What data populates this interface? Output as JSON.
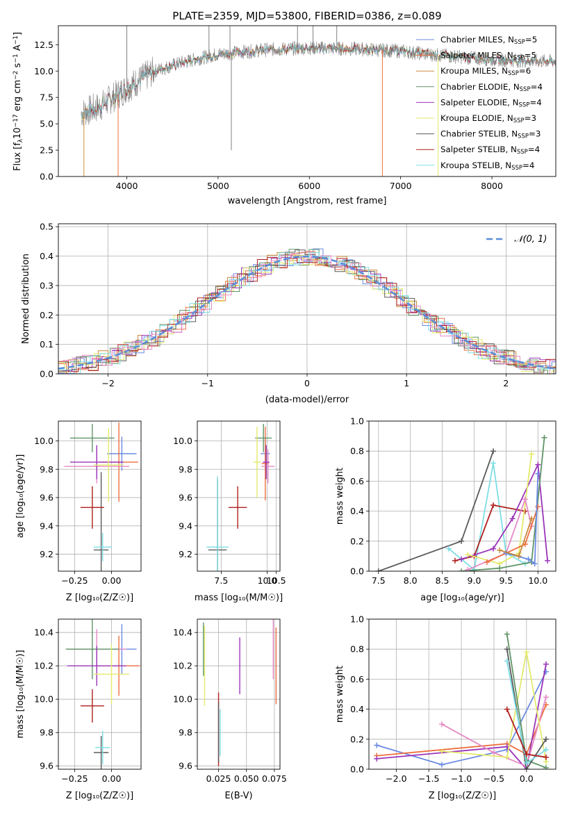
{
  "chart_data": [
    {
      "type": "line",
      "title": "PLATE=2359, MJD=53800, FIBERID=0386, z=0.089",
      "xlabel": "wavelength [Angstrom, rest frame]",
      "ylabel": "Flux [f_λ 10^-17 erg cm^-2 s^-1 A^-1]",
      "xlim": [
        3250,
        8700
      ],
      "ylim": [
        0,
        14.3
      ],
      "xticks": [
        4000,
        5000,
        6000,
        7000,
        8000
      ],
      "yticks": [
        "0.0",
        "2.5",
        "5.0",
        "7.5",
        "10.0",
        "12.5"
      ],
      "legend_position": "right",
      "legend": [
        {
          "name": "Chabrier MILES",
          "nssp": "5",
          "color": "#6b8ae4"
        },
        {
          "name": "Salpeter MILES",
          "nssp": "5",
          "color": "#ec6f3f"
        },
        {
          "name": "Kroupa MILES",
          "nssp": "6",
          "color": "#c8893a"
        },
        {
          "name": "Chabrier ELODIE",
          "nssp": "4",
          "color": "#5e9466"
        },
        {
          "name": "Salpeter ELODIE",
          "nssp": "4",
          "color": "#9a34b8"
        },
        {
          "name": "Kroupa ELODIE",
          "nssp": "3",
          "color": "#e3ea6b"
        },
        {
          "name": "Chabrier STELIB",
          "nssp": "3",
          "color": "#5a5a5a"
        },
        {
          "name": "Salpeter STELIB",
          "nssp": "4",
          "color": "#b01e1e"
        },
        {
          "name": "Kroupa STELIB",
          "nssp": "4",
          "color": "#7ddde4"
        }
      ],
      "spectrum_trend": {
        "x": [
          3500,
          3700,
          4000,
          4300,
          4600,
          5000,
          5500,
          6000,
          6500,
          7000,
          7300,
          7700,
          8000,
          8300,
          8700
        ],
        "y": [
          6.0,
          6.6,
          8.4,
          10.0,
          10.8,
          11.6,
          12.0,
          12.2,
          12.1,
          11.9,
          11.6,
          11.3,
          11.1,
          11.0,
          10.9
        ]
      },
      "spectrum_spikes": [
        {
          "x": 4000,
          "y": 14.3
        },
        {
          "x": 4900,
          "y": 14.3
        },
        {
          "x": 5130,
          "y": 14.3
        },
        {
          "x": 5145,
          "y": 2.5
        },
        {
          "x": 6040,
          "y": 14.3
        },
        {
          "x": 5870,
          "y": 14.3
        },
        {
          "x": 6300,
          "y": 14.3
        },
        {
          "x": 3905,
          "y": 0.0
        },
        {
          "x": 6800,
          "y": 0.0
        },
        {
          "x": 7410,
          "y": 0.0
        },
        {
          "x": 3530,
          "y": 0.0
        }
      ]
    },
    {
      "type": "bar",
      "xlabel": "(data-model)/error",
      "ylabel": "Normed distribution",
      "xlim": [
        -2.5,
        2.5
      ],
      "ylim": [
        0,
        0.51
      ],
      "xticks": [
        "−2",
        "−1",
        "0",
        "1",
        "2"
      ],
      "yticks": [
        "0.0",
        "0.1",
        "0.2",
        "0.3",
        "0.4",
        "0.5"
      ],
      "legend": [
        {
          "name": "𝒩(0, 1)",
          "color": "#5b8ed8",
          "style": "dashed"
        }
      ],
      "bin_width": 0.1
    },
    {
      "type": "scatter",
      "xlabel": "Z [log₁₀(Z/Z☉)]",
      "ylabel": "age  [log₁₀(age/yr)]",
      "xlim": [
        -0.36,
        0.2
      ],
      "ylim": [
        9.08,
        10.14
      ],
      "xticks": [
        "−0.25",
        "0.00"
      ],
      "yticks": [
        "9.2",
        "9.4",
        "9.6",
        "9.8",
        "10.0"
      ],
      "points": [
        {
          "x": 0.07,
          "y": 9.91,
          "xerr": 0.1,
          "yerr": 0.12,
          "color": "#6b8ae4"
        },
        {
          "x": 0.05,
          "y": 9.85,
          "xerr": 0.13,
          "yerr": 0.28,
          "color": "#ec6f3f"
        },
        {
          "x": -0.1,
          "y": 9.82,
          "xerr": 0.22,
          "yerr": 0.12,
          "color": "#e58ac5"
        },
        {
          "x": -0.13,
          "y": 10.02,
          "xerr": 0.15,
          "yerr": 0.1,
          "color": "#5e9466"
        },
        {
          "x": -0.1,
          "y": 9.85,
          "xerr": 0.18,
          "yerr": 0.12,
          "color": "#9a34b8"
        },
        {
          "x": -0.02,
          "y": 9.83,
          "xerr": 0.1,
          "yerr": 0.26,
          "color": "#e3ea6b"
        },
        {
          "x": -0.07,
          "y": 9.23,
          "xerr": 0.05,
          "yerr": 0.55,
          "color": "#5a5a5a"
        },
        {
          "x": -0.13,
          "y": 9.53,
          "xerr": 0.08,
          "yerr": 0.15,
          "color": "#b01e1e"
        },
        {
          "x": -0.06,
          "y": 9.25,
          "xerr": 0.06,
          "yerr": 0.1,
          "color": "#7ddde4"
        }
      ]
    },
    {
      "type": "scatter",
      "xlabel": "mass [log₁₀(M/M☉)]",
      "ylabel": "",
      "xlim": [
        6.2,
        10.7
      ],
      "ylim": [
        9.08,
        10.14
      ],
      "xticks": [
        "7.5",
        "10.0",
        "10.5"
      ],
      "yticks": [
        "9.2",
        "9.4",
        "9.6",
        "9.8",
        "10.0"
      ],
      "points": [
        {
          "x": 9.9,
          "y": 9.91,
          "xerr": 0.25,
          "yerr": 0.12,
          "color": "#6b8ae4"
        },
        {
          "x": 9.9,
          "y": 9.84,
          "xerr": 0.2,
          "yerr": 0.26,
          "color": "#ec6f3f"
        },
        {
          "x": 10.05,
          "y": 9.82,
          "xerr": 0.35,
          "yerr": 0.12,
          "color": "#e58ac5"
        },
        {
          "x": 9.8,
          "y": 10.02,
          "xerr": 0.45,
          "yerr": 0.1,
          "color": "#5e9466"
        },
        {
          "x": 9.95,
          "y": 9.85,
          "xerr": 0.18,
          "yerr": 0.12,
          "color": "#9a34b8"
        },
        {
          "x": 9.45,
          "y": 9.85,
          "xerr": 0.2,
          "yerr": 0.25,
          "color": "#e3ea6b"
        },
        {
          "x": 7.3,
          "y": 9.23,
          "xerr": 0.5,
          "yerr": 0.5,
          "color": "#5a5a5a"
        },
        {
          "x": 8.4,
          "y": 9.53,
          "xerr": 0.5,
          "yerr": 0.15,
          "color": "#b01e1e"
        },
        {
          "x": 7.3,
          "y": 9.25,
          "xerr": 0.6,
          "yerr": 0.5,
          "color": "#7ddde4"
        }
      ]
    },
    {
      "type": "line",
      "xlabel": "age  [log₁₀(age/yr)]",
      "ylabel": "mass weight",
      "xlim": [
        7.35,
        10.28
      ],
      "ylim": [
        0,
        1
      ],
      "xticks": [
        "7.5",
        "8.0",
        "8.5",
        "9.0",
        "9.5",
        "10.0"
      ],
      "yticks": [
        "0.0",
        "0.2",
        "0.4",
        "0.6",
        "0.8",
        "1.0"
      ],
      "series": [
        {
          "color": "#5a5a5a",
          "x": [
            7.5,
            8.8,
            9.3
          ],
          "y": [
            0.0,
            0.2,
            0.8
          ]
        },
        {
          "color": "#7ddde4",
          "x": [
            8.6,
            9.0,
            9.3,
            9.5,
            9.8
          ],
          "y": [
            0.15,
            0.01,
            0.72,
            0.12,
            0.05
          ]
        },
        {
          "color": "#b01e1e",
          "x": [
            8.7,
            9.0,
            9.3,
            9.8
          ],
          "y": [
            0.07,
            0.1,
            0.44,
            0.4
          ]
        },
        {
          "color": "#9a34b8",
          "x": [
            8.8,
            9.3,
            9.6,
            10.0,
            10.15
          ],
          "y": [
            0.08,
            0.15,
            0.35,
            0.71,
            0.07
          ]
        },
        {
          "color": "#e3ea6b",
          "x": [
            8.9,
            9.4,
            9.7,
            9.9
          ],
          "y": [
            0.11,
            0.05,
            0.12,
            0.78
          ]
        },
        {
          "color": "#5e9466",
          "x": [
            8.8,
            9.4,
            9.9,
            10.1
          ],
          "y": [
            0.0,
            0.02,
            0.06,
            0.89
          ]
        },
        {
          "color": "#e58ac5",
          "x": [
            8.9,
            9.5,
            9.8,
            9.9
          ],
          "y": [
            0.01,
            0.12,
            0.48,
            0.3
          ]
        },
        {
          "color": "#ec6f3f",
          "x": [
            9.2,
            9.5,
            9.8,
            10.0
          ],
          "y": [
            0.06,
            0.12,
            0.18,
            0.43
          ]
        },
        {
          "color": "#6b8ae4",
          "x": [
            9.5,
            9.85,
            9.95,
            10.0
          ],
          "y": [
            0.12,
            0.08,
            0.05,
            0.65
          ]
        },
        {
          "color": "#c8893a",
          "x": [
            9.4,
            9.7,
            9.9
          ],
          "y": [
            0.14,
            0.1,
            0.35
          ]
        }
      ]
    },
    {
      "type": "scatter",
      "xlabel": "Z [log₁₀(Z/Z☉)]",
      "ylabel": "mass [log₁₀(M/M☉)]",
      "xlim": [
        -0.36,
        0.2
      ],
      "ylim": [
        9.58,
        10.48
      ],
      "xticks": [
        "−0.25",
        "0.00"
      ],
      "yticks": [
        "9.6",
        "9.8",
        "10.0",
        "10.2",
        "10.4"
      ],
      "points": [
        {
          "x": 0.07,
          "y": 10.3,
          "xerr": 0.1,
          "yerr": 0.15,
          "color": "#6b8ae4"
        },
        {
          "x": 0.05,
          "y": 10.2,
          "xerr": 0.14,
          "yerr": 0.18,
          "color": "#ec6f3f"
        },
        {
          "x": -0.1,
          "y": 10.3,
          "xerr": 0.2,
          "yerr": 0.12,
          "color": "#e58ac5"
        },
        {
          "x": -0.13,
          "y": 10.3,
          "xerr": 0.18,
          "yerr": 0.18,
          "color": "#5e9466"
        },
        {
          "x": -0.1,
          "y": 10.2,
          "xerr": 0.2,
          "yerr": 0.12,
          "color": "#9a34b8"
        },
        {
          "x": 0.0,
          "y": 10.15,
          "xerr": 0.12,
          "yerr": 0.18,
          "color": "#e3ea6b"
        },
        {
          "x": -0.07,
          "y": 9.68,
          "xerr": 0.05,
          "yerr": 0.1,
          "color": "#5a5a5a"
        },
        {
          "x": -0.13,
          "y": 9.96,
          "xerr": 0.08,
          "yerr": 0.1,
          "color": "#b01e1e"
        },
        {
          "x": -0.06,
          "y": 9.71,
          "xerr": 0.05,
          "yerr": 0.1,
          "color": "#7ddde4"
        }
      ]
    },
    {
      "type": "scatter",
      "xlabel": "E(B-V)",
      "ylabel": "",
      "xlim": [
        0.006,
        0.08
      ],
      "ylim": [
        9.58,
        10.48
      ],
      "xticks": [
        "0.025",
        "0.050",
        "0.075"
      ],
      "yticks": [
        "9.6",
        "9.8",
        "10.0",
        "10.2",
        "10.4"
      ],
      "points": [
        {
          "x": 0.0765,
          "y": 10.2,
          "yerr": 0.23,
          "color": "#ec6f3f"
        },
        {
          "x": 0.074,
          "y": 10.3,
          "yerr": 0.18,
          "color": "#e58ac5"
        },
        {
          "x": 0.0115,
          "y": 10.3,
          "yerr": 0.16,
          "color": "#5e9466"
        },
        {
          "x": 0.044,
          "y": 10.2,
          "yerr": 0.17,
          "color": "#9a34b8"
        },
        {
          "x": 0.0125,
          "y": 10.2,
          "yerr": 0.24,
          "color": "#e3ea6b"
        },
        {
          "x": 0.025,
          "y": 9.82,
          "yerr": 0.22,
          "color": "#b01e1e"
        },
        {
          "x": 0.0265,
          "y": 9.8,
          "yerr": 0.14,
          "color": "#7ddde4"
        },
        {
          "x": 0.025,
          "y": 9.8,
          "yerr": 0.18,
          "color": "#5a5a5a"
        }
      ]
    },
    {
      "type": "line",
      "xlabel": "Z [log₁₀(Z/Z☉)]",
      "ylabel": "mass weight",
      "xlim": [
        -2.42,
        0.45
      ],
      "ylim": [
        0,
        1
      ],
      "xticks": [
        "−2.0",
        "−1.5",
        "−1.0",
        "−0.5",
        "0.0"
      ],
      "yticks": [
        "0.0",
        "0.2",
        "0.4",
        "0.6",
        "0.8",
        "1.0"
      ],
      "series": [
        {
          "color": "#6b8ae4",
          "x": [
            -2.3,
            -1.3,
            -0.3,
            0.3
          ],
          "y": [
            0.16,
            0.03,
            0.13,
            0.65
          ]
        },
        {
          "color": "#ec6f3f",
          "x": [
            -2.3,
            -0.3,
            0.0,
            0.3
          ],
          "y": [
            0.09,
            0.17,
            0.1,
            0.43
          ]
        },
        {
          "color": "#9a34b8",
          "x": [
            -2.3,
            -0.3,
            0.0,
            0.3
          ],
          "y": [
            0.07,
            0.15,
            0.0,
            0.7
          ]
        },
        {
          "color": "#e58ac5",
          "x": [
            -1.3,
            -0.5,
            0.0,
            0.3
          ],
          "y": [
            0.3,
            0.11,
            0.02,
            0.48
          ]
        },
        {
          "color": "#e3ea6b",
          "x": [
            -1.3,
            -0.3,
            0.0,
            0.3
          ],
          "y": [
            0.12,
            0.08,
            0.78,
            0.05
          ]
        },
        {
          "color": "#5e9466",
          "x": [
            -0.3,
            0.0,
            0.3
          ],
          "y": [
            0.9,
            0.06,
            0.01
          ]
        },
        {
          "color": "#5a5a5a",
          "x": [
            -0.3,
            0.0,
            0.3
          ],
          "y": [
            0.8,
            0.0,
            0.2
          ]
        },
        {
          "color": "#7ddde4",
          "x": [
            -0.3,
            0.0,
            0.3
          ],
          "y": [
            0.72,
            0.04,
            0.13
          ]
        },
        {
          "color": "#b01e1e",
          "x": [
            -0.3,
            0.0,
            0.3
          ],
          "y": [
            0.4,
            0.1,
            0.08
          ]
        }
      ]
    }
  ]
}
